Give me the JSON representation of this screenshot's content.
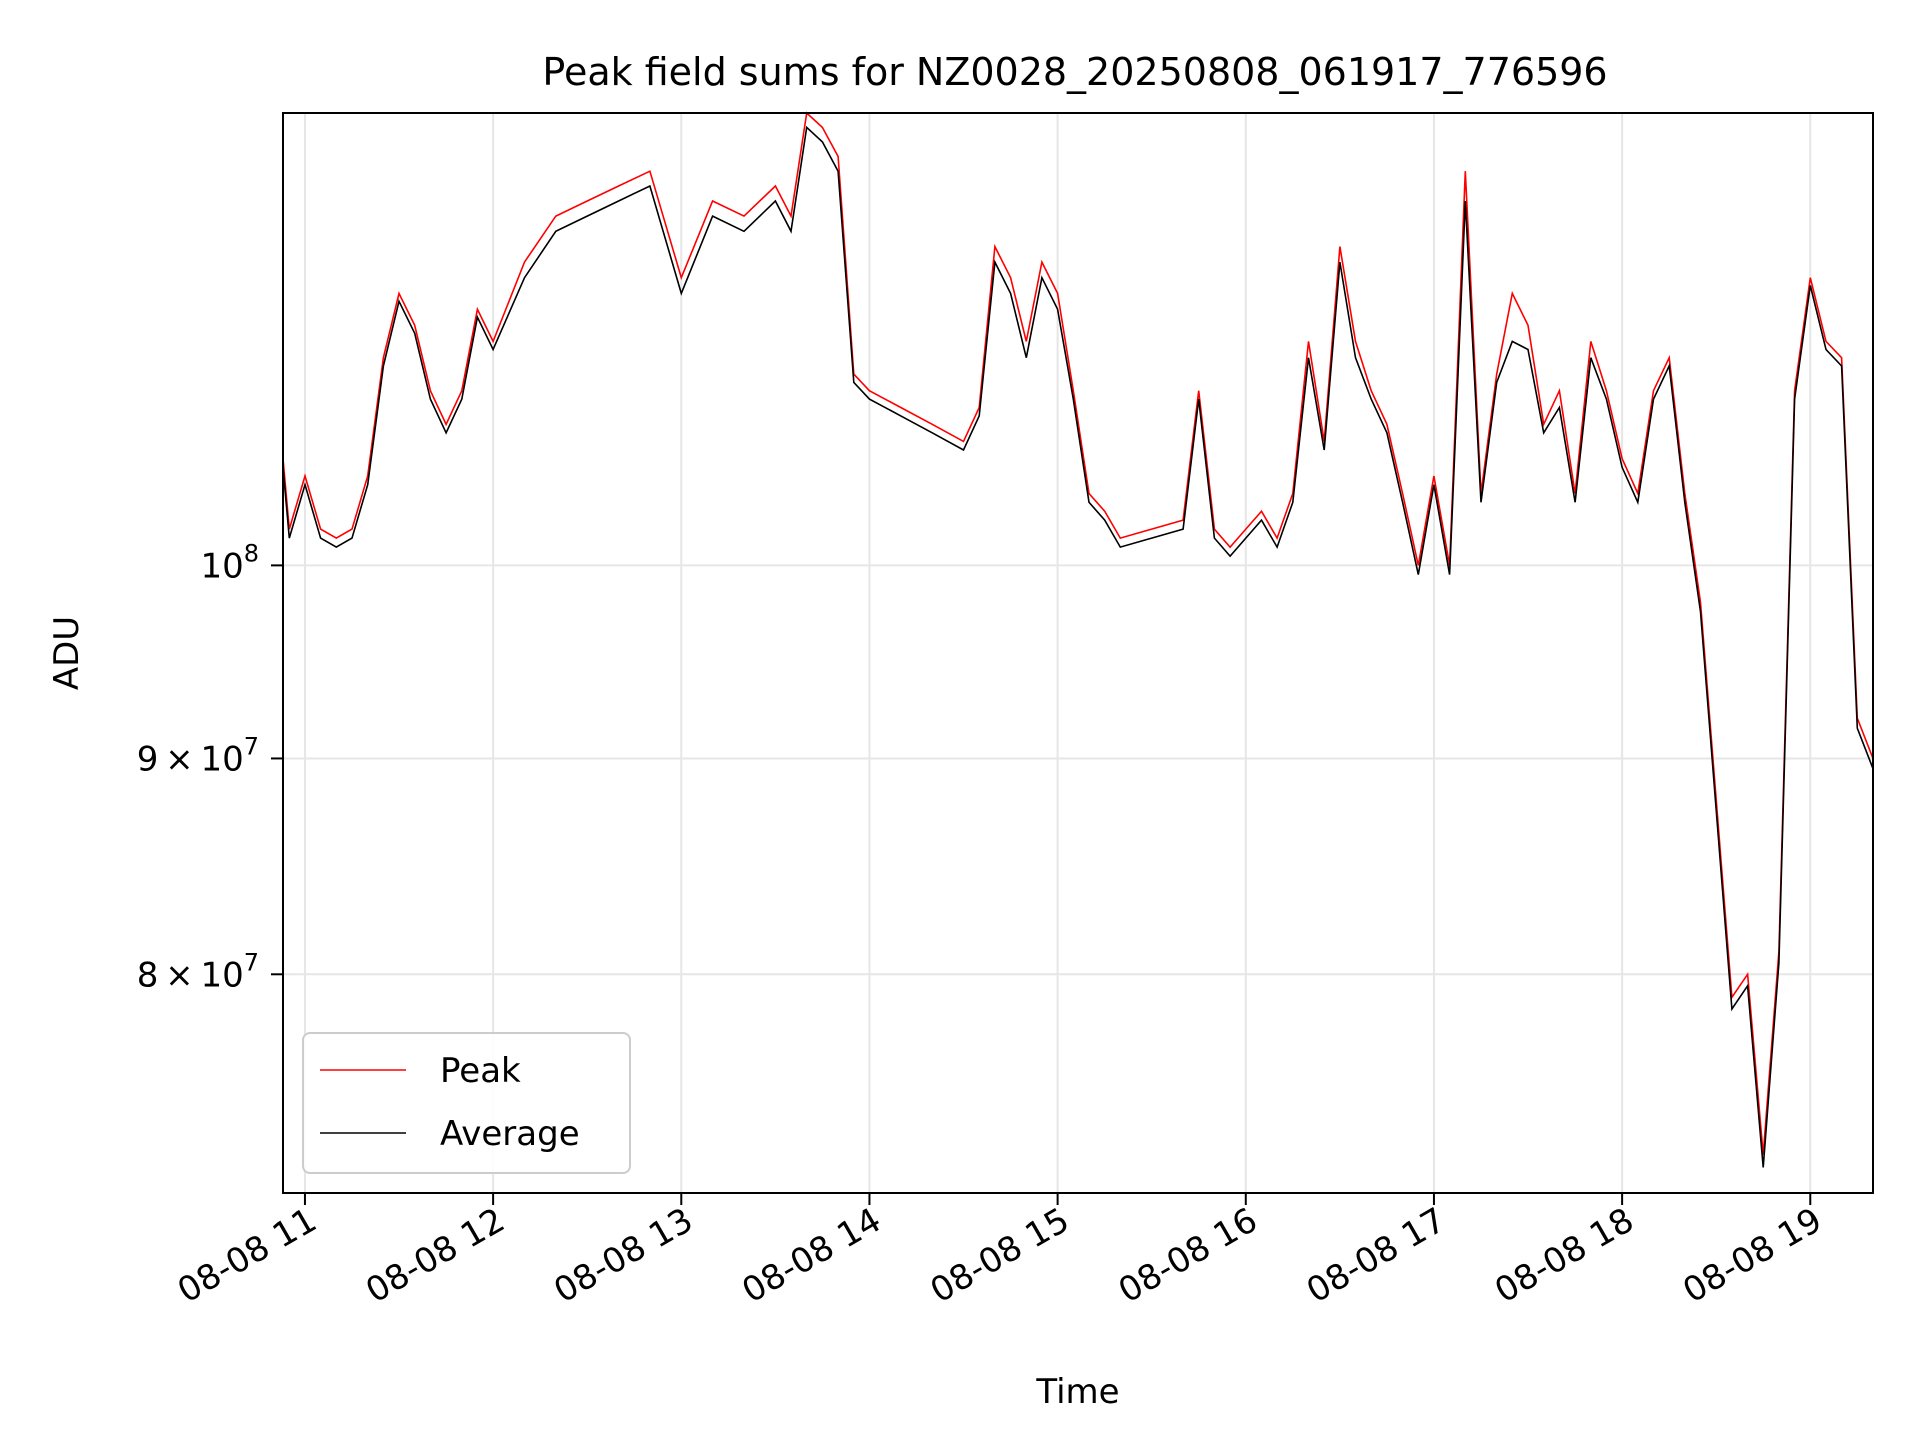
{
  "chart_data": {
    "type": "line",
    "title": "Peak field sums for NZ0028_20250808_061917_776596",
    "xlabel": "Time",
    "ylabel": "ADU",
    "xlim": [
      "2025-08-08T10:53",
      "2025-08-08T19:20"
    ],
    "ylim": [
      71000000,
      128000000
    ],
    "yscale": "log",
    "grid": true,
    "legend_position": "lower-left",
    "x_ticks": [
      {
        "t": "2025-08-08T11:00",
        "label": "08-08 11"
      },
      {
        "t": "2025-08-08T12:00",
        "label": "08-08 12"
      },
      {
        "t": "2025-08-08T13:00",
        "label": "08-08 13"
      },
      {
        "t": "2025-08-08T14:00",
        "label": "08-08 14"
      },
      {
        "t": "2025-08-08T15:00",
        "label": "08-08 15"
      },
      {
        "t": "2025-08-08T16:00",
        "label": "08-08 16"
      },
      {
        "t": "2025-08-08T17:00",
        "label": "08-08 17"
      },
      {
        "t": "2025-08-08T18:00",
        "label": "08-08 18"
      },
      {
        "t": "2025-08-08T19:00",
        "label": "08-08 19"
      }
    ],
    "y_ticks": [
      {
        "value": 80000000,
        "mantissa": "8",
        "base": "10",
        "exp": "7"
      },
      {
        "value": 90000000,
        "mantissa": "9",
        "base": "10",
        "exp": "7"
      },
      {
        "value": 100000000,
        "mantissa": "",
        "base": "10",
        "exp": "8"
      }
    ],
    "series": [
      {
        "name": "Peak",
        "color": "#ff0000",
        "x": [
          "2025-08-08T10:53",
          "2025-08-08T10:55",
          "2025-08-08T11:00",
          "2025-08-08T11:05",
          "2025-08-08T11:10",
          "2025-08-08T11:15",
          "2025-08-08T11:20",
          "2025-08-08T11:25",
          "2025-08-08T11:30",
          "2025-08-08T11:35",
          "2025-08-08T11:40",
          "2025-08-08T11:45",
          "2025-08-08T11:50",
          "2025-08-08T11:55",
          "2025-08-08T12:00",
          "2025-08-08T12:10",
          "2025-08-08T12:20",
          "2025-08-08T12:30",
          "2025-08-08T12:40",
          "2025-08-08T12:50",
          "2025-08-08T13:00",
          "2025-08-08T13:10",
          "2025-08-08T13:20",
          "2025-08-08T13:30",
          "2025-08-08T13:35",
          "2025-08-08T13:40",
          "2025-08-08T13:45",
          "2025-08-08T13:50",
          "2025-08-08T13:55",
          "2025-08-08T14:00",
          "2025-08-08T14:10",
          "2025-08-08T14:20",
          "2025-08-08T14:30",
          "2025-08-08T14:35",
          "2025-08-08T14:40",
          "2025-08-08T14:45",
          "2025-08-08T14:50",
          "2025-08-08T14:55",
          "2025-08-08T15:00",
          "2025-08-08T15:05",
          "2025-08-08T15:10",
          "2025-08-08T15:15",
          "2025-08-08T15:20",
          "2025-08-08T15:30",
          "2025-08-08T15:40",
          "2025-08-08T15:45",
          "2025-08-08T15:50",
          "2025-08-08T15:55",
          "2025-08-08T16:00",
          "2025-08-08T16:05",
          "2025-08-08T16:10",
          "2025-08-08T16:15",
          "2025-08-08T16:20",
          "2025-08-08T16:25",
          "2025-08-08T16:30",
          "2025-08-08T16:35",
          "2025-08-08T16:40",
          "2025-08-08T16:45",
          "2025-08-08T16:50",
          "2025-08-08T16:55",
          "2025-08-08T17:00",
          "2025-08-08T17:05",
          "2025-08-08T17:10",
          "2025-08-08T17:15",
          "2025-08-08T17:20",
          "2025-08-08T17:25",
          "2025-08-08T17:30",
          "2025-08-08T17:35",
          "2025-08-08T17:40",
          "2025-08-08T17:45",
          "2025-08-08T17:50",
          "2025-08-08T17:55",
          "2025-08-08T18:00",
          "2025-08-08T18:05",
          "2025-08-08T18:10",
          "2025-08-08T18:15",
          "2025-08-08T18:20",
          "2025-08-08T18:25",
          "2025-08-08T18:30",
          "2025-08-08T18:35",
          "2025-08-08T18:40",
          "2025-08-08T18:45",
          "2025-08-08T18:50",
          "2025-08-08T18:55",
          "2025-08-08T19:00",
          "2025-08-08T19:05",
          "2025-08-08T19:10",
          "2025-08-08T19:15",
          "2025-08-08T19:20"
        ],
        "values": [
          106000000,
          102000000,
          105000000,
          102000000,
          101500000,
          102000000,
          105000000,
          112000000,
          116000000,
          114000000,
          110000000,
          108000000,
          110000000,
          115000000,
          113000000,
          118000000,
          121000000,
          122000000,
          123000000,
          124000000,
          117000000,
          122000000,
          121000000,
          123000000,
          121000000,
          128000000,
          127000000,
          125000000,
          111000000,
          110000000,
          109000000,
          108000000,
          107000000,
          109000000,
          119000000,
          117000000,
          113000000,
          118000000,
          116000000,
          110000000,
          104000000,
          103000000,
          101500000,
          102000000,
          102500000,
          110000000,
          102000000,
          101000000,
          102000000,
          103000000,
          101500000,
          104000000,
          113000000,
          107000000,
          119000000,
          113000000,
          110000000,
          108000000,
          104000000,
          100000000,
          105000000,
          100000000,
          124000000,
          104000000,
          111000000,
          116000000,
          114000000,
          108000000,
          110000000,
          104000000,
          113000000,
          110000000,
          106000000,
          104000000,
          110000000,
          112000000,
          104000000,
          98000000,
          88000000,
          79000000,
          80000000,
          72500000,
          81000000,
          110000000,
          117000000,
          113000000,
          112000000,
          92000000,
          90000000
        ],
        "note_start_value": 119000000
      },
      {
        "name": "Average",
        "color": "#000000",
        "x": [
          "2025-08-08T10:53",
          "2025-08-08T10:55",
          "2025-08-08T11:00",
          "2025-08-08T11:05",
          "2025-08-08T11:10",
          "2025-08-08T11:15",
          "2025-08-08T11:20",
          "2025-08-08T11:25",
          "2025-08-08T11:30",
          "2025-08-08T11:35",
          "2025-08-08T11:40",
          "2025-08-08T11:45",
          "2025-08-08T11:50",
          "2025-08-08T11:55",
          "2025-08-08T12:00",
          "2025-08-08T12:10",
          "2025-08-08T12:20",
          "2025-08-08T12:30",
          "2025-08-08T12:40",
          "2025-08-08T12:50",
          "2025-08-08T13:00",
          "2025-08-08T13:10",
          "2025-08-08T13:20",
          "2025-08-08T13:30",
          "2025-08-08T13:35",
          "2025-08-08T13:40",
          "2025-08-08T13:45",
          "2025-08-08T13:50",
          "2025-08-08T13:55",
          "2025-08-08T14:00",
          "2025-08-08T14:10",
          "2025-08-08T14:20",
          "2025-08-08T14:30",
          "2025-08-08T14:35",
          "2025-08-08T14:40",
          "2025-08-08T14:45",
          "2025-08-08T14:50",
          "2025-08-08T14:55",
          "2025-08-08T15:00",
          "2025-08-08T15:05",
          "2025-08-08T15:10",
          "2025-08-08T15:15",
          "2025-08-08T15:20",
          "2025-08-08T15:30",
          "2025-08-08T15:40",
          "2025-08-08T15:45",
          "2025-08-08T15:50",
          "2025-08-08T15:55",
          "2025-08-08T16:00",
          "2025-08-08T16:05",
          "2025-08-08T16:10",
          "2025-08-08T16:15",
          "2025-08-08T16:20",
          "2025-08-08T16:25",
          "2025-08-08T16:30",
          "2025-08-08T16:35",
          "2025-08-08T16:40",
          "2025-08-08T16:45",
          "2025-08-08T16:50",
          "2025-08-08T16:55",
          "2025-08-08T17:00",
          "2025-08-08T17:05",
          "2025-08-08T17:10",
          "2025-08-08T17:15",
          "2025-08-08T17:20",
          "2025-08-08T17:25",
          "2025-08-08T17:30",
          "2025-08-08T17:35",
          "2025-08-08T17:40",
          "2025-08-08T17:45",
          "2025-08-08T17:50",
          "2025-08-08T17:55",
          "2025-08-08T18:00",
          "2025-08-08T18:05",
          "2025-08-08T18:10",
          "2025-08-08T18:15",
          "2025-08-08T18:20",
          "2025-08-08T18:25",
          "2025-08-08T18:30",
          "2025-08-08T18:35",
          "2025-08-08T18:40",
          "2025-08-08T18:45",
          "2025-08-08T18:50",
          "2025-08-08T18:55",
          "2025-08-08T19:00",
          "2025-08-08T19:05",
          "2025-08-08T19:10",
          "2025-08-08T19:15",
          "2025-08-08T19:20"
        ],
        "values": [
          105500000,
          101500000,
          104500000,
          101500000,
          101000000,
          101500000,
          104500000,
          111500000,
          115500000,
          113500000,
          109500000,
          107500000,
          109500000,
          114500000,
          112500000,
          117000000,
          120000000,
          121000000,
          122000000,
          123000000,
          116000000,
          121000000,
          120000000,
          122000000,
          120000000,
          127000000,
          126000000,
          124000000,
          110500000,
          109500000,
          108500000,
          107500000,
          106500000,
          108500000,
          118000000,
          116000000,
          112000000,
          117000000,
          115000000,
          109500000,
          103500000,
          102500000,
          101000000,
          101500000,
          102000000,
          109500000,
          101500000,
          100500000,
          101500000,
          102500000,
          101000000,
          103500000,
          112000000,
          106500000,
          118000000,
          112000000,
          109500000,
          107500000,
          103500000,
          99500000,
          104500000,
          99500000,
          122000000,
          103500000,
          110500000,
          113000000,
          112500000,
          107500000,
          109000000,
          103500000,
          112000000,
          109500000,
          105500000,
          103500000,
          109500000,
          111500000,
          103500000,
          97500000,
          87500000,
          78500000,
          79500000,
          72000000,
          80500000,
          109500000,
          116500000,
          112500000,
          111500000,
          91500000,
          89500000
        ]
      }
    ]
  }
}
